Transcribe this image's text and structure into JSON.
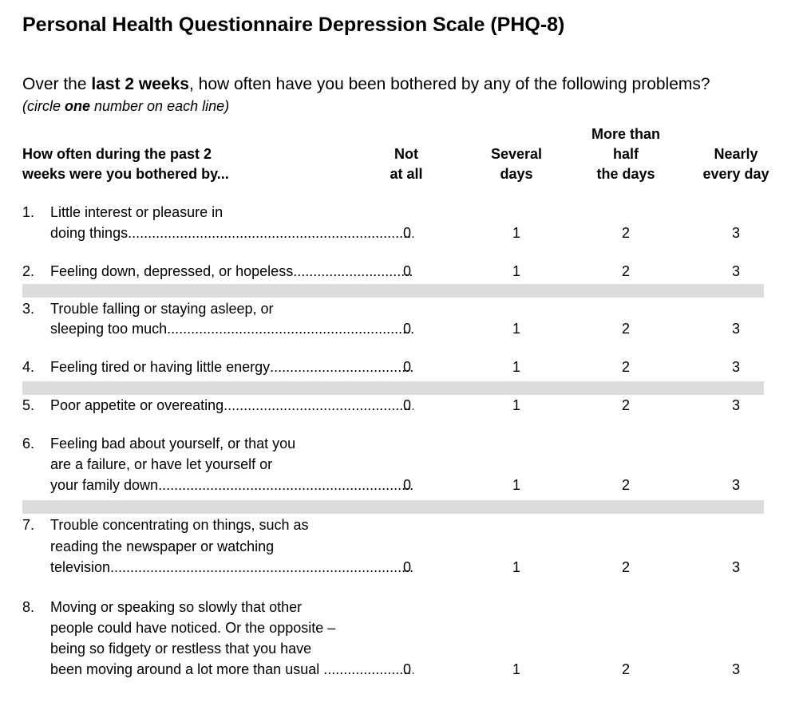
{
  "form": {
    "title": "Personal Health Questionnaire Depression Scale (PHQ-8)",
    "question_pre": "Over the ",
    "question_bold": "last 2 weeks",
    "question_post": ", how often have you been bothered by any of the following problems?",
    "instruction_pre": "(circle ",
    "instruction_bold": "one",
    "instruction_post": " number on each line)"
  },
  "table": {
    "row_header": [
      "How often during the past 2",
      "weeks were you bothered by..."
    ],
    "columns": [
      {
        "lines": [
          "Not",
          "at all"
        ]
      },
      {
        "lines": [
          "Several",
          "days"
        ]
      },
      {
        "lines": [
          "More than",
          "half",
          "the days"
        ]
      },
      {
        "lines": [
          "Nearly",
          "every day"
        ]
      }
    ],
    "items": [
      {
        "number": "1.",
        "lines": [
          "Little interest or pleasure in",
          "doing things"
        ],
        "scores": [
          "0",
          "1",
          "2",
          "3"
        ]
      },
      {
        "number": "2.",
        "lines": [
          "Feeling down, depressed, or hopeless"
        ],
        "scores": [
          "0",
          "1",
          "2",
          "3"
        ]
      },
      {
        "number": "3.",
        "lines": [
          "Trouble falling or staying asleep, or",
          "sleeping too much"
        ],
        "scores": [
          "0",
          "1",
          "2",
          "3"
        ]
      },
      {
        "number": "4.",
        "lines": [
          "Feeling tired or having little energy"
        ],
        "scores": [
          "0",
          "1",
          "2",
          "3"
        ]
      },
      {
        "number": "5.",
        "lines": [
          "Poor appetite or overeating"
        ],
        "scores": [
          "0",
          "1",
          "2",
          "3"
        ]
      },
      {
        "number": "6.",
        "lines": [
          "Feeling bad about yourself, or that you",
          "are a failure, or have let yourself or",
          "your family down"
        ],
        "scores": [
          "0",
          "1",
          "2",
          "3"
        ]
      },
      {
        "number": "7.",
        "lines": [
          "Trouble concentrating on things, such as",
          "reading the newspaper or watching",
          "television"
        ],
        "scores": [
          "0",
          "1",
          "2",
          "3"
        ]
      },
      {
        "number": "8.",
        "lines": [
          "Moving or speaking so slowly that other",
          "people could have noticed. Or the opposite –",
          "being so fidgety or restless that you have",
          "been moving around a lot more than usual"
        ],
        "scores": [
          "0",
          "1",
          "2",
          "3"
        ]
      }
    ]
  },
  "colors": {
    "band": "#dcdcdc",
    "text": "#000000"
  }
}
